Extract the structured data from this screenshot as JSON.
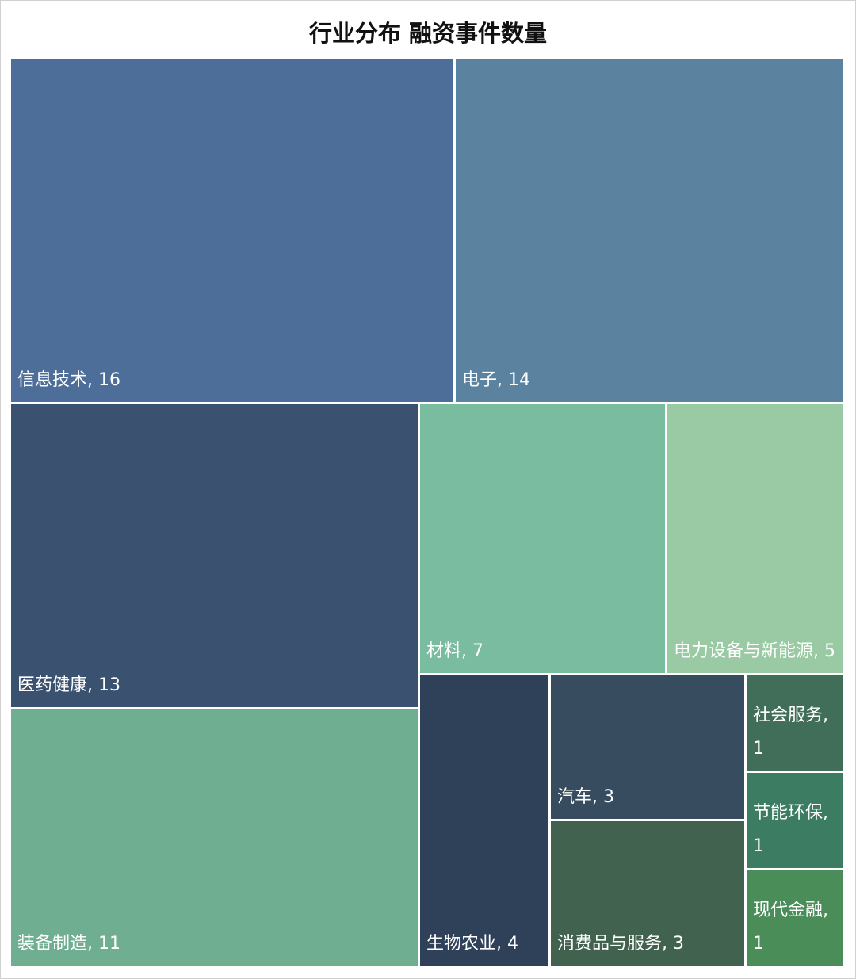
{
  "chart_data": {
    "type": "treemap",
    "title": "行业分布 融资事件数量",
    "labels": [
      "信息技术, 16",
      "电子, 14",
      "医药健康, 13",
      "装备制造, 11",
      "材料, 7",
      "电力设备与新能源, 5",
      "生物农业, 4",
      "汽车, 3",
      "消费品与服务, 3",
      "社会服务, 1",
      "节能环保, 1",
      "现代金融, 1"
    ],
    "values": [
      16,
      14,
      13,
      11,
      7,
      5,
      4,
      3,
      3,
      1,
      1,
      1
    ],
    "colors": [
      "#4e6e9a",
      "#5b829e",
      "#3a5270",
      "#70ae92",
      "#79bca0",
      "#9acaa3",
      "#2f4159",
      "#374d5f",
      "#41624f",
      "#416e58",
      "#3b7c62",
      "#4a8d58"
    ]
  }
}
